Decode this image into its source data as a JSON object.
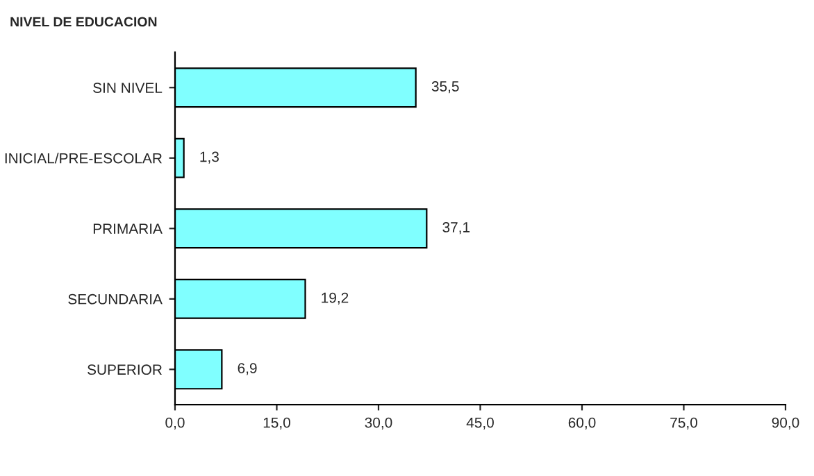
{
  "chart_data": {
    "type": "bar",
    "orientation": "horizontal",
    "title": "NIVEL DE EDUCACION",
    "categories": [
      "SIN NIVEL",
      "INICIAL/PRE-ESCOLAR",
      "PRIMARIA",
      "SECUNDARIA",
      "SUPERIOR"
    ],
    "values": [
      35.5,
      1.3,
      37.1,
      19.2,
      6.9
    ],
    "value_labels": [
      "35,5",
      "1,3",
      "37,1",
      "19,2",
      "6,9"
    ],
    "color": "#80ffff",
    "xlim": [
      0,
      90
    ],
    "xticks": [
      {
        "value": 0,
        "label": "0,0"
      },
      {
        "value": 15,
        "label": "15,0"
      },
      {
        "value": 30,
        "label": "30,0"
      },
      {
        "value": 45,
        "label": "45,0"
      },
      {
        "value": 60,
        "label": "60,0"
      },
      {
        "value": 75,
        "label": "75,0"
      },
      {
        "value": 90,
        "label": "90,0"
      }
    ],
    "grid": false,
    "legend": false
  }
}
